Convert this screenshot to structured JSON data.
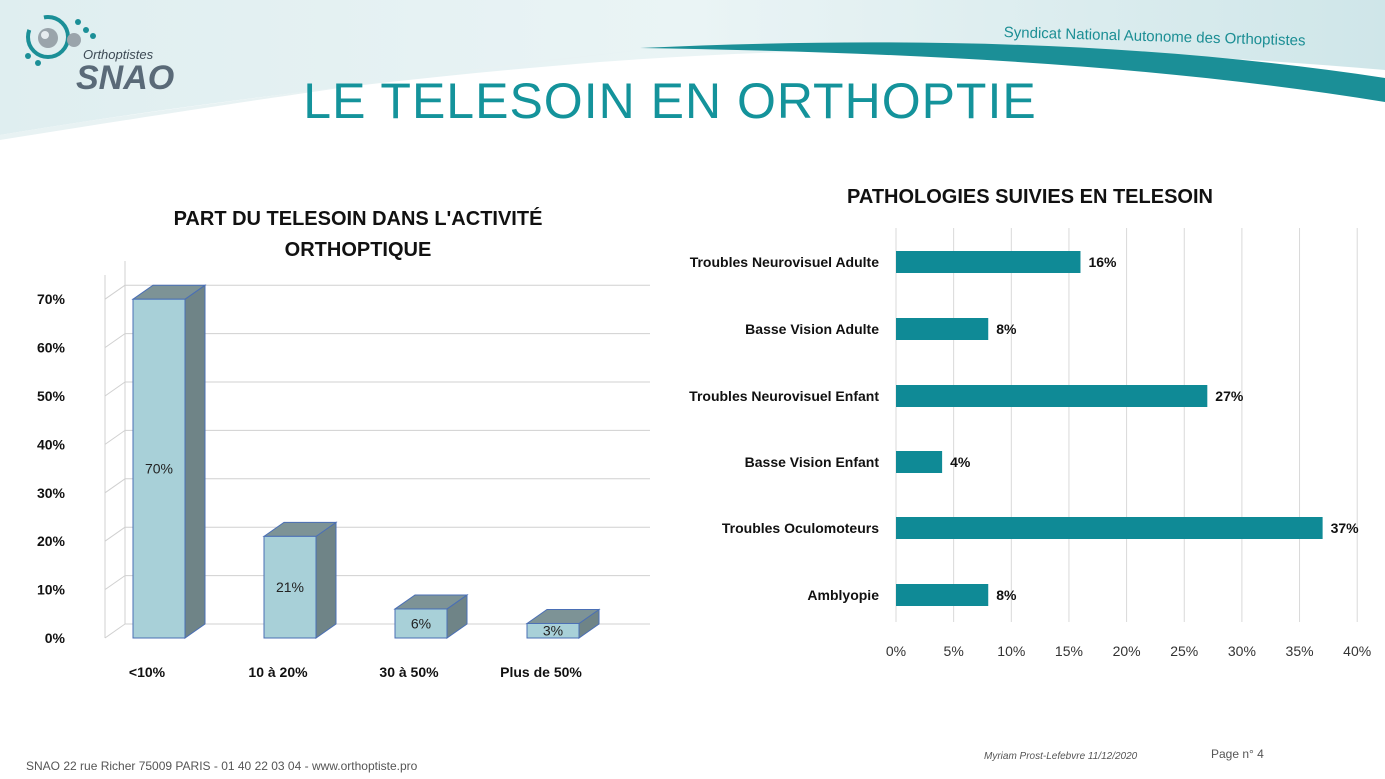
{
  "header": {
    "logo_sub": "Orthoptistes",
    "logo_main": "SNAO",
    "organization": "Syndicat National Autonome des Orthoptistes",
    "page_title": "LE TELESOIN EN ORTHOPTIE"
  },
  "footer": {
    "address": "SNAO 22 rue Richer 75009 PARIS   -  01 40 22 03 04  -  www.orthoptiste.pro",
    "author": "Myriam Prost-Lefebvre 11/12/2020",
    "page": "Page n° 4"
  },
  "chart_data": [
    {
      "type": "bar",
      "style": "3d-column",
      "title_line1": "PART DU TELESOIN DANS L'ACTIVITÉ",
      "title_line2": "ORTHOPTIQUE",
      "categories": [
        "<10%",
        "10 à 20%",
        "30 à 50%",
        "Plus de 50%"
      ],
      "values": [
        70,
        21,
        6,
        3
      ],
      "value_labels": [
        "70%",
        "21%",
        "6%",
        "3%"
      ],
      "y_ticks": [
        "0%",
        "10%",
        "20%",
        "30%",
        "40%",
        "50%",
        "60%",
        "70%"
      ],
      "ylim": [
        0,
        75
      ],
      "grid": true,
      "colors": {
        "face": "#a8d0d8",
        "top": "#7d9396",
        "side": "#6f8487",
        "edge": "#4a6fb5"
      }
    },
    {
      "type": "bar",
      "orientation": "horizontal",
      "title": "PATHOLOGIES SUIVIES EN TELESOIN",
      "categories": [
        "Troubles Neurovisuel Adulte",
        "Basse Vision Adulte",
        "Troubles Neurovisuel Enfant",
        "Basse Vision Enfant",
        "Troubles Oculomoteurs",
        "Amblyopie"
      ],
      "values": [
        16,
        8,
        27,
        4,
        37,
        8
      ],
      "value_labels": [
        "16%",
        "8%",
        "27%",
        "4%",
        "37%",
        "8%"
      ],
      "x_ticks": [
        "0%",
        "5%",
        "10%",
        "15%",
        "20%",
        "25%",
        "30%",
        "35%",
        "40%"
      ],
      "xlim": [
        0,
        40
      ],
      "grid": true,
      "colors": {
        "bar": "#0f8a96"
      }
    }
  ]
}
